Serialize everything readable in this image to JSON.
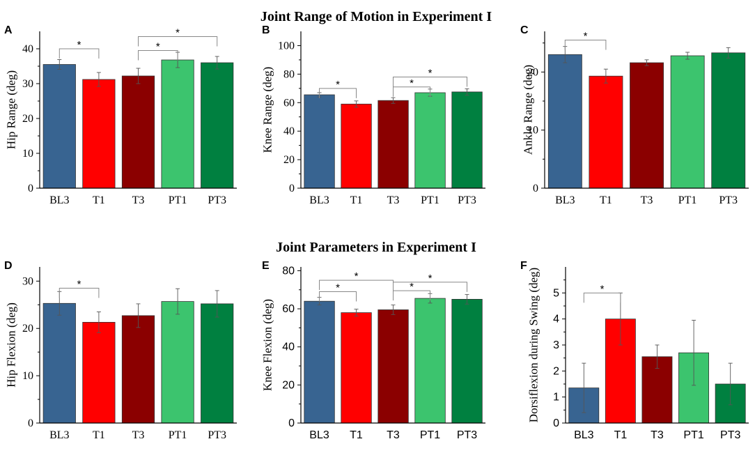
{
  "figure": {
    "top_title": "Joint Range of Motion in Experiment I",
    "bottom_title": "Joint Parameters in Experiment I"
  },
  "colors": {
    "BL3": "#386491",
    "T1": "#ff0000",
    "T3": "#8b0000",
    "PT1": "#3cc46e",
    "PT3": "#008040"
  },
  "chart_data": [
    {
      "type": "bar",
      "panel": "A",
      "categories": [
        "BL3",
        "T1",
        "T3",
        "PT1",
        "PT3"
      ],
      "values": [
        35.5,
        31.2,
        32.2,
        36.8,
        36.0
      ],
      "errors": [
        1.4,
        2.0,
        2.2,
        2.2,
        1.8
      ],
      "ylabel": "Hip Range (deg)",
      "ylim": [
        0,
        45
      ],
      "yticks": [
        0,
        10,
        20,
        30,
        40
      ],
      "significance": [
        {
          "from": 0,
          "to": 1,
          "label": "*",
          "level": 40
        },
        {
          "from": 2,
          "to": 3,
          "label": "*",
          "level": 39.5
        },
        {
          "from": 2,
          "to": 4,
          "label": "*",
          "level": 43.5
        }
      ]
    },
    {
      "type": "bar",
      "panel": "B",
      "categories": [
        "BL3",
        "T1",
        "T3",
        "PT1",
        "PT3"
      ],
      "values": [
        65.5,
        59.0,
        61.5,
        67.0,
        67.5
      ],
      "errors": [
        1.5,
        2.2,
        2.0,
        2.5,
        2.2
      ],
      "ylabel": "Knee Range (deg)",
      "ylim": [
        0,
        110
      ],
      "yticks": [
        0,
        20,
        40,
        60,
        80,
        100
      ],
      "significance": [
        {
          "from": 0,
          "to": 1,
          "label": "*",
          "level": 70
        },
        {
          "from": 2,
          "to": 3,
          "label": "*",
          "level": 71
        },
        {
          "from": 2,
          "to": 4,
          "label": "*",
          "level": 78
        }
      ]
    },
    {
      "type": "bar",
      "panel": "C",
      "categories": [
        "BL3",
        "T1",
        "T3",
        "PT1",
        "PT3"
      ],
      "values": [
        23.0,
        19.3,
        21.6,
        22.8,
        23.3
      ],
      "errors": [
        1.4,
        1.2,
        0.5,
        0.6,
        0.9
      ],
      "ylabel": "Ankle Range (deg)",
      "ylim": [
        0,
        27
      ],
      "yticks": [
        0,
        10,
        20
      ],
      "significance": [
        {
          "from": 0,
          "to": 1,
          "label": "*",
          "level": 25.5
        }
      ]
    },
    {
      "type": "bar",
      "panel": "D",
      "categories": [
        "BL3",
        "T1",
        "T3",
        "PT1",
        "PT3"
      ],
      "values": [
        25.3,
        21.3,
        22.7,
        25.7,
        25.2
      ],
      "errors": [
        2.5,
        2.2,
        2.5,
        2.7,
        2.8
      ],
      "ylabel": "Hip Flexion (deg)",
      "ylim": [
        0,
        33
      ],
      "yticks": [
        0,
        10,
        20,
        30
      ],
      "significance": [
        {
          "from": 0,
          "to": 1,
          "label": "*",
          "level": 28.5
        }
      ]
    },
    {
      "type": "bar",
      "panel": "E",
      "categories": [
        "BL3",
        "T1",
        "T3",
        "PT1",
        "PT3"
      ],
      "values": [
        64.0,
        58.0,
        59.5,
        65.5,
        65.0
      ],
      "errors": [
        2.0,
        1.8,
        2.5,
        2.5,
        2.5
      ],
      "ylabel": "Knee Flexion (deg)",
      "ylim": [
        0,
        82
      ],
      "yticks": [
        0,
        20,
        40,
        60,
        80
      ],
      "significance": [
        {
          "from": 0,
          "to": 1,
          "label": "*",
          "level": 69
        },
        {
          "from": 0,
          "to": 2,
          "label": "*",
          "level": 75
        },
        {
          "from": 2,
          "to": 3,
          "label": "*",
          "level": 69.5
        },
        {
          "from": 2,
          "to": 4,
          "label": "*",
          "level": 74
        }
      ]
    },
    {
      "type": "bar",
      "panel": "F",
      "categories": [
        "BL3",
        "T1",
        "T3",
        "PT1",
        "PT3"
      ],
      "values": [
        1.35,
        4.0,
        2.55,
        2.7,
        1.5
      ],
      "errors": [
        0.95,
        1.0,
        0.45,
        1.25,
        0.8
      ],
      "ylabel": "Dorsiflexion during Swing (deg)",
      "ylim": [
        0,
        6
      ],
      "yticks": [
        0,
        1,
        2,
        3,
        4,
        5
      ],
      "significance": [
        {
          "from": 0,
          "to": 1,
          "label": "*",
          "level": 5.0
        }
      ]
    }
  ]
}
